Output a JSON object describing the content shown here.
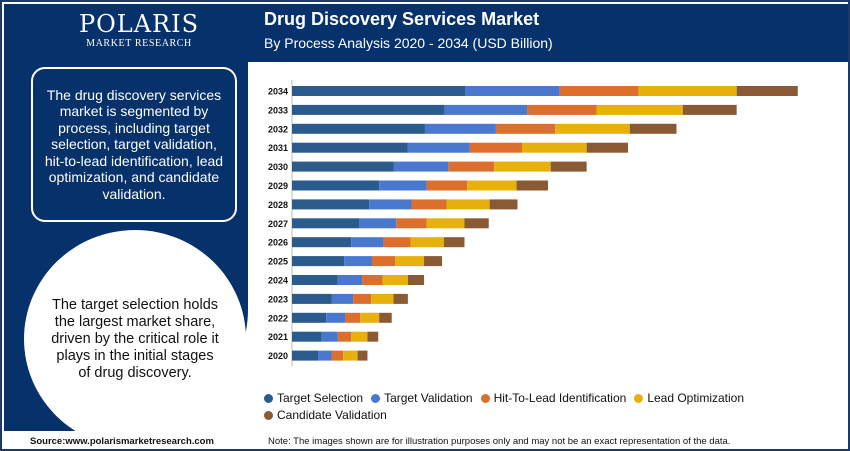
{
  "logo": {
    "name": "POLARIS",
    "subtitle": "MARKET RESEARCH"
  },
  "header": {
    "title": "Drug Discovery Services Market",
    "subtitle": "By Process Analysis 2020 - 2034 (USD Billion)"
  },
  "left_panel": {
    "box_text": "The drug discovery services market is segmented by process, including target selection, target validation, hit-to-lead identification, lead optimization, and candidate validation.",
    "circle_text": "The target selection holds the largest market share, driven by the critical role it plays in the initial stages of drug discovery."
  },
  "footer": {
    "source": "Source:www.polarismarketresearch.com",
    "note": "Note: The images shown are for illustration purposes only and may not be an exact representation of the data."
  },
  "colors": {
    "panel": "#06316a",
    "target_selection": "#2a5b8c",
    "target_validation": "#4a78cf",
    "hit_to_lead": "#dd6f2c",
    "lead_optimization": "#e8b00d",
    "candidate_validation": "#8a5a34"
  },
  "chart_data": {
    "type": "bar",
    "orientation": "horizontal",
    "stacked": true,
    "categories": [
      "2034",
      "2033",
      "2032",
      "2031",
      "2030",
      "2029",
      "2028",
      "2027",
      "2026",
      "2025",
      "2024",
      "2023",
      "2022",
      "2021",
      "2020"
    ],
    "series": [
      {
        "name": "Target Selection",
        "color": "#2a5b8c",
        "values": [
          19.3,
          17.0,
          14.8,
          12.9,
          11.3,
          9.7,
          8.6,
          7.5,
          6.6,
          5.8,
          5.1,
          4.4,
          3.8,
          3.3,
          2.9
        ]
      },
      {
        "name": "Target Validation",
        "color": "#4a78cf",
        "values": [
          10.5,
          9.2,
          7.9,
          6.9,
          6.1,
          5.3,
          4.7,
          4.1,
          3.6,
          3.1,
          2.7,
          2.4,
          2.1,
          1.8,
          1.5
        ]
      },
      {
        "name": "Hit-To-Lead Identification",
        "color": "#dd6f2c",
        "values": [
          8.8,
          7.7,
          6.6,
          5.8,
          5.1,
          4.5,
          3.9,
          3.4,
          3.0,
          2.6,
          2.3,
          2.0,
          1.7,
          1.5,
          1.3
        ]
      },
      {
        "name": "Lead Optimization",
        "color": "#e8b00d",
        "values": [
          10.9,
          9.6,
          8.3,
          7.2,
          6.3,
          5.5,
          4.8,
          4.2,
          3.7,
          3.2,
          2.8,
          2.5,
          2.1,
          1.8,
          1.6
        ]
      },
      {
        "name": "Candidate Validation",
        "color": "#8a5a34",
        "values": [
          6.8,
          6.0,
          5.2,
          4.6,
          4.0,
          3.5,
          3.1,
          2.7,
          2.3,
          2.0,
          1.8,
          1.6,
          1.4,
          1.2,
          1.1
        ]
      }
    ],
    "xlim": [
      0,
      60
    ],
    "axis_visible": false,
    "grid": false,
    "legend_position": "bottom"
  }
}
